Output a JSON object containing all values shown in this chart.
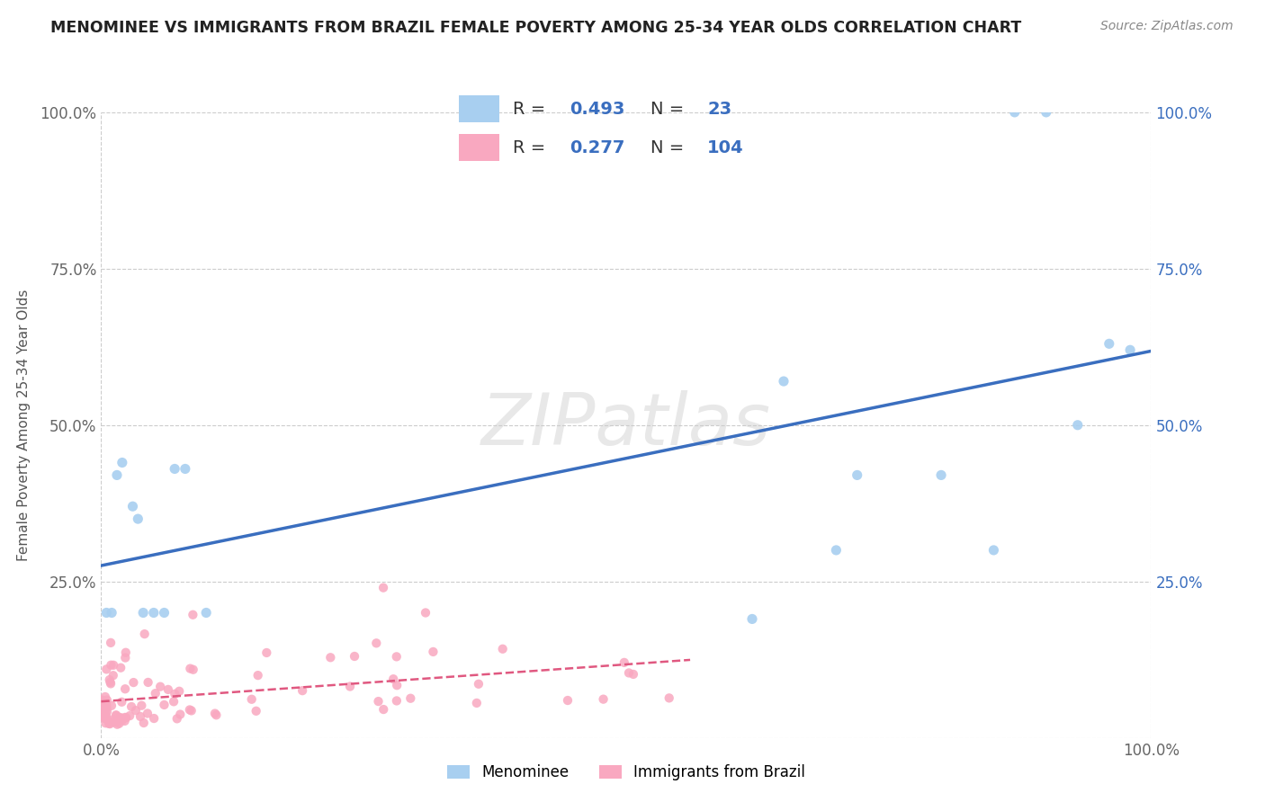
{
  "title": "MENOMINEE VS IMMIGRANTS FROM BRAZIL FEMALE POVERTY AMONG 25-34 YEAR OLDS CORRELATION CHART",
  "source": "Source: ZipAtlas.com",
  "ylabel": "Female Poverty Among 25-34 Year Olds",
  "xlim": [
    0.0,
    1.0
  ],
  "ylim": [
    0.0,
    1.0
  ],
  "ytick_vals": [
    0.0,
    0.25,
    0.5,
    0.75,
    1.0
  ],
  "ytick_labels_left": [
    "",
    "25.0%",
    "50.0%",
    "75.0%",
    "100.0%"
  ],
  "ytick_labels_right": [
    "",
    "25.0%",
    "50.0%",
    "75.0%",
    "100.0%"
  ],
  "xtick_vals": [
    0.0,
    1.0
  ],
  "xtick_labels": [
    "0.0%",
    "100.0%"
  ],
  "grid_color": "#cccccc",
  "background_color": "#ffffff",
  "watermark_text": "ZIPatlas",
  "series1_name": "Menominee",
  "series1_color": "#a8cff0",
  "series1_R": 0.493,
  "series1_N": 23,
  "series1_line_color": "#3a6ebf",
  "series2_name": "Immigrants from Brazil",
  "series2_color": "#f9a8c0",
  "series2_R": 0.277,
  "series2_N": 104,
  "series2_line_color": "#e05880",
  "blue_text_color": "#3a6ebf",
  "title_color": "#222222",
  "source_color": "#888888",
  "ylabel_color": "#555555",
  "legend_R1": "0.493",
  "legend_N1": "23",
  "legend_R2": "0.277",
  "legend_N2": "104",
  "menominee_x": [
    0.005,
    0.01,
    0.015,
    0.02,
    0.03,
    0.035,
    0.04,
    0.05,
    0.06,
    0.07,
    0.08,
    0.1,
    0.62,
    0.65,
    0.7,
    0.72,
    0.8,
    0.85,
    0.87,
    0.9,
    0.93,
    0.96,
    0.98
  ],
  "menominee_y": [
    0.2,
    0.2,
    0.42,
    0.44,
    0.37,
    0.35,
    0.2,
    0.2,
    0.2,
    0.43,
    0.43,
    0.2,
    0.19,
    0.57,
    0.3,
    0.42,
    0.42,
    0.3,
    1.0,
    1.0,
    0.5,
    0.63,
    0.62
  ]
}
